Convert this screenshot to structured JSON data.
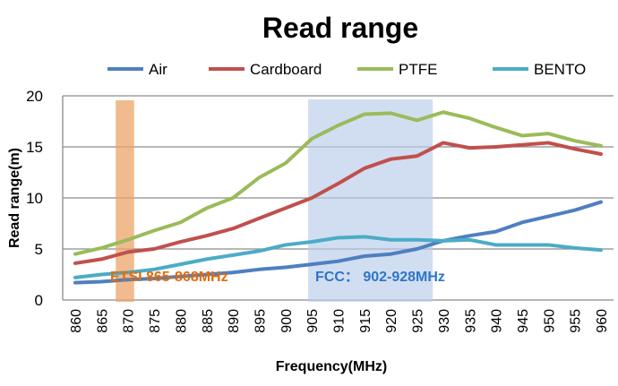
{
  "chart_data": {
    "type": "line",
    "title": "Read range",
    "xlabel": "Frequency(MHz)",
    "ylabel": "Read range(m)",
    "x": [
      860,
      865,
      870,
      875,
      880,
      885,
      890,
      895,
      900,
      905,
      910,
      915,
      920,
      925,
      930,
      935,
      940,
      945,
      950,
      955,
      960
    ],
    "xlim": [
      860,
      960
    ],
    "ylim": [
      0,
      20
    ],
    "yticks": [
      0,
      5,
      10,
      15,
      20
    ],
    "grid": "horizontal",
    "legend": "top",
    "series": [
      {
        "name": "Air",
        "color": "#4f7fc0",
        "values": [
          1.7,
          1.8,
          2.0,
          2.1,
          2.3,
          2.5,
          2.7,
          3.0,
          3.2,
          3.5,
          3.8,
          4.3,
          4.5,
          5.0,
          5.8,
          6.3,
          6.7,
          7.6,
          8.2,
          8.8,
          9.6
        ]
      },
      {
        "name": "Cardboard",
        "color": "#c0504d",
        "values": [
          3.6,
          4.0,
          4.7,
          5.0,
          5.7,
          6.3,
          7.0,
          8.0,
          9.0,
          10.0,
          11.4,
          12.9,
          13.8,
          14.1,
          15.4,
          14.9,
          15.0,
          15.2,
          15.4,
          14.8,
          14.3
        ]
      },
      {
        "name": "PTFE",
        "color": "#9bbb59",
        "values": [
          4.5,
          5.1,
          5.9,
          6.8,
          7.6,
          9.0,
          10.0,
          12.0,
          13.4,
          15.8,
          17.1,
          18.2,
          18.3,
          17.6,
          18.4,
          17.8,
          16.9,
          16.1,
          16.3,
          15.6,
          15.1
        ]
      },
      {
        "name": "BENTO",
        "color": "#4bacc6",
        "values": [
          2.2,
          2.5,
          2.7,
          3.0,
          3.5,
          4.0,
          4.4,
          4.8,
          5.4,
          5.7,
          6.1,
          6.2,
          5.9,
          5.9,
          5.8,
          5.9,
          5.4,
          5.4,
          5.4,
          5.1,
          4.9
        ]
      }
    ],
    "bands": [
      {
        "label": "ETSI 865-868MHz",
        "from": 867.7,
        "to": 871.2,
        "color": "#eba46a",
        "label_color": "#e36c0a"
      },
      {
        "label": "FCC： 902-928MHz",
        "from": 904.3,
        "to": 928,
        "color": "#b8cce9",
        "label_color": "#2e75c6"
      }
    ]
  }
}
